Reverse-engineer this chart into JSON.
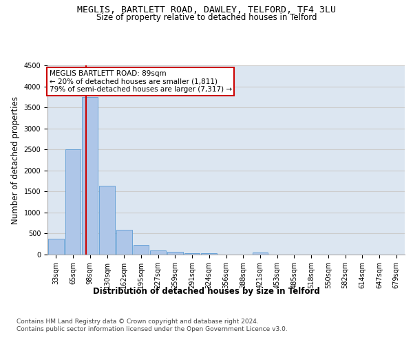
{
  "title_line1": "MEGLIS, BARTLETT ROAD, DAWLEY, TELFORD, TF4 3LU",
  "title_line2": "Size of property relative to detached houses in Telford",
  "xlabel": "Distribution of detached houses by size in Telford",
  "ylabel": "Number of detached properties",
  "categories": [
    "33sqm",
    "65sqm",
    "98sqm",
    "130sqm",
    "162sqm",
    "195sqm",
    "227sqm",
    "259sqm",
    "291sqm",
    "324sqm",
    "356sqm",
    "388sqm",
    "421sqm",
    "453sqm",
    "485sqm",
    "518sqm",
    "550sqm",
    "582sqm",
    "614sqm",
    "647sqm",
    "679sqm"
  ],
  "values": [
    370,
    2500,
    3750,
    1640,
    590,
    230,
    105,
    60,
    35,
    35,
    0,
    0,
    55,
    0,
    0,
    0,
    0,
    0,
    0,
    0,
    0
  ],
  "bar_color": "#aec6e8",
  "bar_edge_color": "#5b9bd5",
  "vline_x": 1.75,
  "vline_color": "#cc0000",
  "annotation_text": "MEGLIS BARTLETT ROAD: 89sqm\n← 20% of detached houses are smaller (1,811)\n79% of semi-detached houses are larger (7,317) →",
  "annotation_box_color": "#ffffff",
  "annotation_box_edge": "#cc0000",
  "ylim": [
    0,
    4500
  ],
  "yticks": [
    0,
    500,
    1000,
    1500,
    2000,
    2500,
    3000,
    3500,
    4000,
    4500
  ],
  "grid_color": "#cccccc",
  "bg_color": "#dce6f1",
  "footer_line1": "Contains HM Land Registry data © Crown copyright and database right 2024.",
  "footer_line2": "Contains public sector information licensed under the Open Government Licence v3.0.",
  "title_fontsize": 9.5,
  "subtitle_fontsize": 8.5,
  "axis_label_fontsize": 8.5,
  "tick_fontsize": 7,
  "footer_fontsize": 6.5,
  "annotation_fontsize": 7.5
}
